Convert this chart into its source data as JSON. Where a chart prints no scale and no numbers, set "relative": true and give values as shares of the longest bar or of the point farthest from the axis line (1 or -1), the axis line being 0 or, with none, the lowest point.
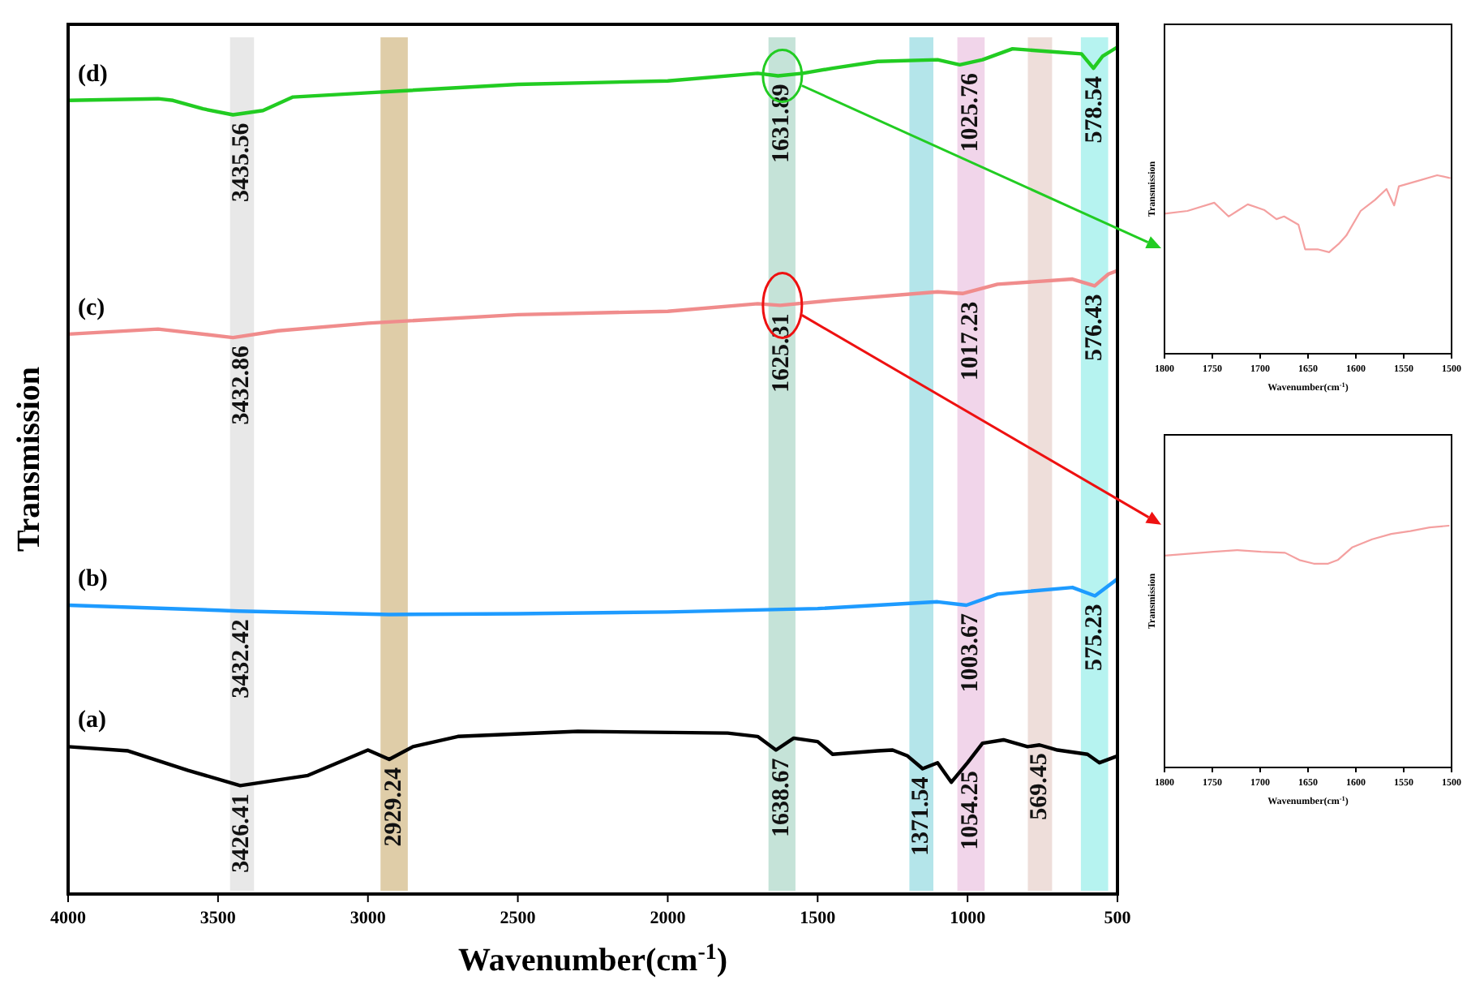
{
  "chart_data": [
    {
      "type": "line",
      "xlabel": "Wavenumber(cm$^{-1}$)",
      "ylabel": "Transmission",
      "relative": true,
      "xlim": [
        4000,
        500
      ],
      "xticks": [
        4000,
        3500,
        3000,
        2500,
        2000,
        1500,
        1000,
        500
      ],
      "x": [
        4000,
        3700,
        3650,
        3550,
        3450,
        3350,
        3250,
        3000,
        2500,
        2000,
        1700,
        1632,
        1550,
        1450,
        1300,
        1100,
        1026,
        950,
        850,
        700,
        620,
        580,
        550,
        500
      ],
      "series": [
        {
          "name": "(a)",
          "color": "#000000",
          "x": [
            4000,
            3800,
            3600,
            3426,
            3200,
            3000,
            2929,
            2850,
            2700,
            2300,
            1800,
            1700,
            1639,
            1580,
            1500,
            1450,
            1300,
            1250,
            1200,
            1150,
            1100,
            1054,
            1000,
            950,
            880,
            800,
            760,
            700,
            600,
            560,
            500
          ],
          "values": [
            0.174,
            0.169,
            0.146,
            0.128,
            0.14,
            0.17,
            0.159,
            0.174,
            0.186,
            0.192,
            0.19,
            0.186,
            0.17,
            0.184,
            0.18,
            0.165,
            0.169,
            0.17,
            0.163,
            0.148,
            0.155,
            0.132,
            0.155,
            0.178,
            0.182,
            0.174,
            0.176,
            0.17,
            0.165,
            0.155,
            0.163
          ]
        },
        {
          "name": "(b)",
          "color": "#1e9bff",
          "x": [
            4000,
            3500,
            3432,
            2929,
            2500,
            2000,
            1500,
            1100,
            1004,
            900,
            650,
            575,
            500
          ],
          "values": [
            0.341,
            0.335,
            0.334,
            0.33,
            0.331,
            0.333,
            0.337,
            0.345,
            0.341,
            0.354,
            0.362,
            0.352,
            0.372
          ]
        },
        {
          "name": "(c)",
          "color": "#f08c8c",
          "x": [
            4000,
            3700,
            3450,
            3300,
            3000,
            2500,
            2000,
            1700,
            1625,
            1450,
            1100,
            1017,
            900,
            650,
            576,
            530,
            500
          ],
          "values": [
            0.661,
            0.667,
            0.657,
            0.665,
            0.674,
            0.684,
            0.688,
            0.697,
            0.695,
            0.701,
            0.711,
            0.709,
            0.72,
            0.726,
            0.718,
            0.732,
            0.736
          ]
        },
        {
          "name": "(d)",
          "color": "#22cc22",
          "values": [
            0.937,
            0.939,
            0.937,
            0.927,
            0.92,
            0.925,
            0.941,
            0.946,
            0.956,
            0.96,
            0.969,
            0.966,
            0.969,
            0.975,
            0.983,
            0.985,
            0.979,
            0.985,
            0.998,
            0.994,
            0.992,
            0.975,
            0.989,
            1
          ]
        }
      ],
      "bands": [
        {
          "axis": "x",
          "from": 3460,
          "to": 3380,
          "color": "#e6e6e6"
        },
        {
          "axis": "x",
          "from": 2958,
          "to": 2867,
          "color": "#dcc89e"
        },
        {
          "axis": "x",
          "from": 1664,
          "to": 1574,
          "color": "#bfe0d4"
        },
        {
          "axis": "x",
          "from": 1194,
          "to": 1114,
          "color": "#ace2e8"
        },
        {
          "axis": "x",
          "from": 1034,
          "to": 943,
          "color": "#f0d0e8"
        },
        {
          "axis": "x",
          "from": 799,
          "to": 718,
          "color": "#ecdad6"
        },
        {
          "axis": "x",
          "from": 622,
          "to": 531,
          "color": "#aef2ee"
        }
      ],
      "annotations": [
        {
          "text": "3435.56",
          "x": 3450,
          "y": 0.92
        },
        {
          "text": "3432.86",
          "x": 3450,
          "y": 0.657
        },
        {
          "text": "3432.42",
          "x": 3432,
          "y": 0.334
        },
        {
          "text": "3426.41",
          "x": 3426,
          "y": 0.128
        },
        {
          "text": "2929.24",
          "x": 2929,
          "y": 0.159
        },
        {
          "text": "1631.89",
          "x": 1632,
          "y": 0.966
        },
        {
          "text": "1625.31",
          "x": 1625,
          "y": 0.695
        },
        {
          "text": "1638.67",
          "x": 1639,
          "y": 0.17
        },
        {
          "text": "1371.54",
          "x": 1150,
          "y": 0.148
        },
        {
          "text": "1025.76",
          "x": 1026,
          "y": 0.979
        },
        {
          "text": "1017.23",
          "x": 1017,
          "y": 0.709
        },
        {
          "text": "1003.67",
          "x": 1004,
          "y": 0.341
        },
        {
          "text": "1054.25",
          "x": 1000,
          "y": 0.155
        },
        {
          "text": "569.45",
          "x": 760,
          "y": 0.176
        },
        {
          "text": "578.54",
          "x": 580,
          "y": 0.975
        },
        {
          "text": "576.43",
          "x": 576,
          "y": 0.718
        },
        {
          "text": "575.23",
          "x": 575,
          "y": 0.352
        }
      ]
    },
    {
      "type": "line",
      "xlabel": "Wavenumber(cm$^{-1}$)",
      "ylabel": "Transmission",
      "relative": true,
      "xlim": [
        1800,
        1500
      ],
      "xticks": [
        1800,
        1750,
        1700,
        1650,
        1600,
        1550,
        1500
      ],
      "series": [
        {
          "color": "#f4a0a0",
          "x": [
            1800,
            1776,
            1748,
            1733,
            1713,
            1696,
            1683,
            1675,
            1660,
            1653,
            1640,
            1628,
            1618,
            1610,
            1595,
            1580,
            1568,
            1560,
            1555,
            1535,
            1515,
            1502
          ],
          "values": [
            0.785,
            0.8,
            0.846,
            0.769,
            0.837,
            0.806,
            0.754,
            0.769,
            0.723,
            0.585,
            0.585,
            0.569,
            0.615,
            0.662,
            0.8,
            0.862,
            0.923,
            0.831,
            0.938,
            0.969,
            1,
            0.985
          ]
        }
      ]
    },
    {
      "type": "line",
      "xlabel": "Wavenumber(cm$^{-1}$)",
      "ylabel": "Transmission",
      "relative": true,
      "xlim": [
        1800,
        1500
      ],
      "xticks": [
        1800,
        1750,
        1700,
        1650,
        1600,
        1550,
        1500
      ],
      "series": [
        {
          "color": "#f4a0a0",
          "x": [
            1800,
            1749,
            1724,
            1699,
            1674,
            1659,
            1644,
            1629,
            1619,
            1604,
            1583,
            1563,
            1543,
            1523,
            1503
          ],
          "values": [
            0.876,
            0.892,
            0.899,
            0.892,
            0.888,
            0.858,
            0.843,
            0.843,
            0.858,
            0.91,
            0.944,
            0.966,
            0.978,
            0.993,
            1
          ]
        }
      ]
    }
  ]
}
